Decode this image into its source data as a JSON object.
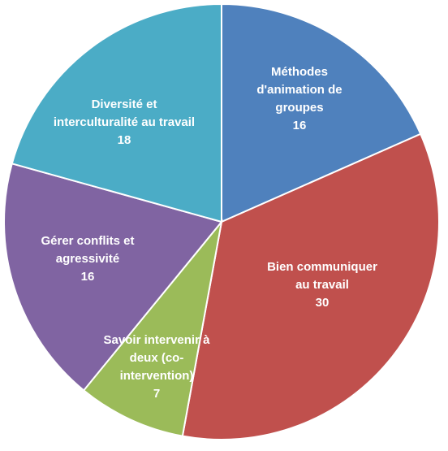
{
  "chart_data": {
    "type": "pie",
    "title": "",
    "start_angle_deg": 0,
    "direction": "clockwise",
    "slices": [
      {
        "label_lines": [
          "Méthodes",
          "d'animation de",
          "groupes"
        ],
        "value": 16,
        "color": "#4f81bd"
      },
      {
        "label_lines": [
          "Bien communiquer",
          "au travail"
        ],
        "value": 30,
        "color": "#c0504d"
      },
      {
        "label_lines": [
          "Savoir intervenir à",
          "deux (co-",
          "intervention)"
        ],
        "value": 7,
        "color": "#9bbb59"
      },
      {
        "label_lines": [
          "Gérer conflits et",
          "agressivité"
        ],
        "value": 16,
        "color": "#8064a2"
      },
      {
        "label_lines": [
          "Diversité et",
          "interculturalité au travail"
        ],
        "value": 18,
        "color": "#4bacc6"
      }
    ]
  }
}
